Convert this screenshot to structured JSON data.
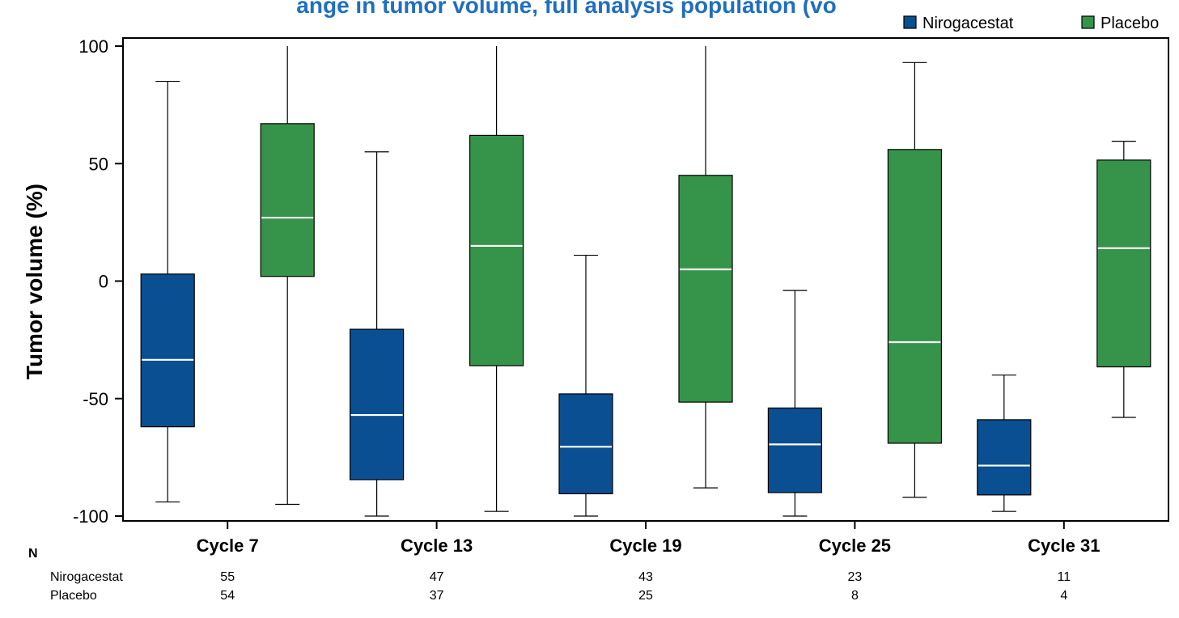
{
  "chart_data": {
    "type": "boxplot",
    "title": "ange in tumor volume, full analysis population (vo",
    "ylabel": "Tumor volume (%)",
    "xlabel": "",
    "ylim": [
      -100,
      100
    ],
    "yticks": [
      100,
      50,
      0,
      -50,
      -100
    ],
    "categories": [
      "Cycle 7",
      "Cycle 13",
      "Cycle 19",
      "Cycle 25",
      "Cycle 31"
    ],
    "legend_position": "top-right",
    "grid": false,
    "series": [
      {
        "name": "Nirogacestat",
        "color": "#0a4f91",
        "boxes": [
          {
            "min": -94,
            "q1": -62,
            "median": -33.5,
            "q3": 3,
            "max": 85
          },
          {
            "min": -100,
            "q1": -84.5,
            "median": -57,
            "q3": -20.5,
            "max": 55
          },
          {
            "min": -100,
            "q1": -90.5,
            "median": -70.5,
            "q3": -48,
            "max": 11
          },
          {
            "min": -100,
            "q1": -90,
            "median": -69.5,
            "q3": -54,
            "max": -4
          },
          {
            "min": -98,
            "q1": -91,
            "median": -78.5,
            "q3": -59,
            "max": -40
          }
        ]
      },
      {
        "name": "Placebo",
        "color": "#36944a",
        "boxes": [
          {
            "min": -95,
            "q1": 2,
            "median": 27,
            "q3": 67,
            "max": 100
          },
          {
            "min": -98,
            "q1": -36,
            "median": 15,
            "q3": 62,
            "max": 100
          },
          {
            "min": -88,
            "q1": -51.5,
            "median": 5,
            "q3": 45,
            "max": 100
          },
          {
            "min": -92,
            "q1": -69,
            "median": -26,
            "q3": 56,
            "max": 93
          },
          {
            "min": -58,
            "q1": -36.5,
            "median": 14,
            "q3": 51.5,
            "max": 59.5
          }
        ]
      }
    ],
    "n_table": {
      "header": "N",
      "rows": [
        {
          "label": "Nirogacestat",
          "values": [
            "55",
            "47",
            "43",
            "23",
            "11"
          ]
        },
        {
          "label": "Placebo",
          "values": [
            "54",
            "37",
            "25",
            "8",
            "4"
          ]
        }
      ]
    }
  }
}
